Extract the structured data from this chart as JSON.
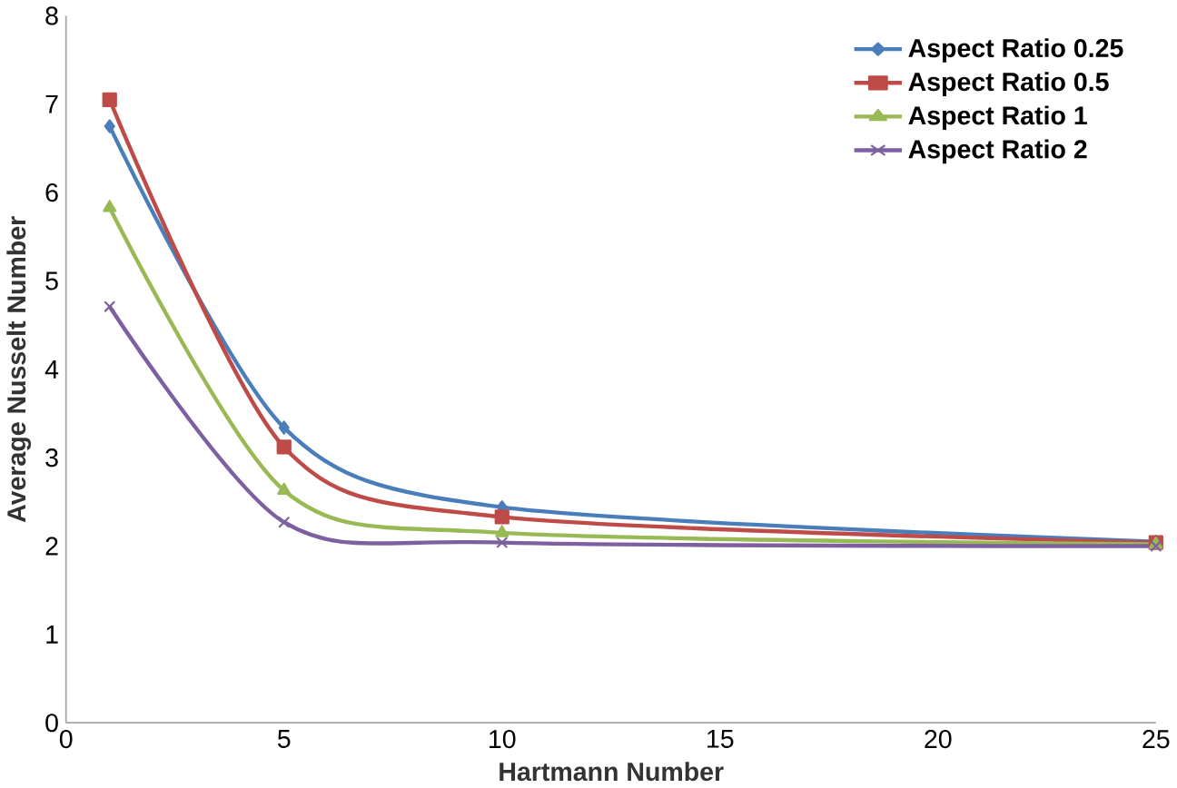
{
  "chart_data": {
    "type": "line",
    "xlabel": "Hartmann Number",
    "ylabel": "Average Nusselt Number",
    "x": [
      1,
      5,
      10,
      25
    ],
    "xlim": [
      0,
      25
    ],
    "xticks": [
      0,
      5,
      10,
      15,
      20,
      25
    ],
    "ylim": [
      0,
      8
    ],
    "yticks": [
      0,
      1,
      2,
      3,
      4,
      5,
      6,
      7,
      8
    ],
    "grid": false,
    "legend": "top right",
    "series": [
      {
        "name": "Aspect Ratio 0.25",
        "color": "#4a7ebb",
        "marker": "diamond",
        "values": [
          6.75,
          3.34,
          2.44,
          2.05
        ]
      },
      {
        "name": "Aspect Ratio 0.5",
        "color": "#be4b48",
        "marker": "square",
        "values": [
          7.05,
          3.12,
          2.33,
          2.04
        ]
      },
      {
        "name": "Aspect Ratio 1",
        "color": "#98b954",
        "marker": "triangle",
        "values": [
          5.83,
          2.63,
          2.15,
          2.02
        ]
      },
      {
        "name": "Aspect Ratio 2",
        "color": "#7d60a0",
        "marker": "cross",
        "values": [
          4.71,
          2.27,
          2.04,
          2.0
        ]
      }
    ]
  }
}
